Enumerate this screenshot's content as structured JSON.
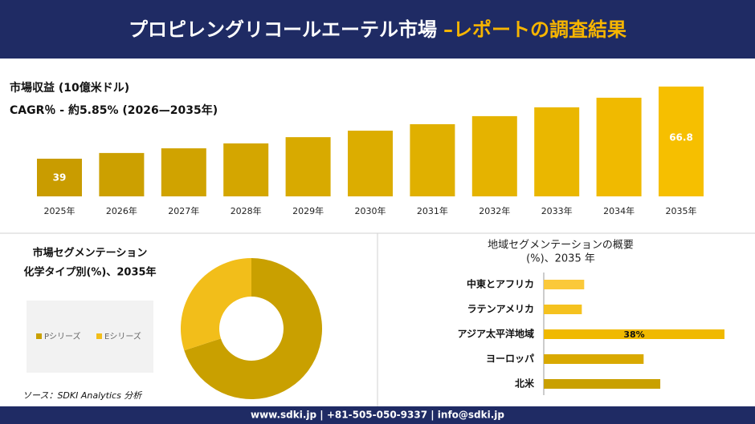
{
  "header": {
    "title": "プロピレングリコールエーテル市場",
    "accent": "–レポートの調査結果"
  },
  "chart_data": [
    {
      "type": "bar",
      "title": "市場収益 (10億米ドル)",
      "subtitle": "CAGR％ - 約5.85% (2026—2035年)",
      "categories": [
        "2025年",
        "2026年",
        "2027年",
        "2028年",
        "2029年",
        "2030年",
        "2031年",
        "2032年",
        "2033年",
        "2034年",
        "2035年"
      ],
      "values": [
        39,
        41.2,
        43.0,
        44.9,
        47.3,
        49.8,
        52.3,
        55.4,
        58.8,
        62.5,
        66.8
      ],
      "value_labels": [
        "39",
        null,
        null,
        null,
        null,
        null,
        null,
        null,
        null,
        null,
        "66.8"
      ],
      "colors": [
        "#c99c00",
        "#cca000",
        "#d0a300",
        "#d4a600",
        "#d8aa00",
        "#dcad00",
        "#e0b000",
        "#e5b300",
        "#eab700",
        "#f0ba00",
        "#f6bf00"
      ]
    },
    {
      "type": "donut",
      "title": "市場セグメンテーション",
      "subtitle": "化学タイプ別(%)、2035年",
      "categories": [
        "Pシリーズ",
        "Eシリーズ"
      ],
      "values": [
        70,
        30
      ],
      "colors": [
        "#c9a000",
        "#f2be1a"
      ]
    },
    {
      "type": "hbar",
      "title": "地域セグメンテーションの概要",
      "subtitle": "(%)、2035 年",
      "categories": [
        "中東とアフリカ",
        "ラテンアメリカ",
        "アジア太平洋地域",
        "ヨーロッパ",
        "北米"
      ],
      "values": [
        8.5,
        8,
        38,
        21,
        24.5
      ],
      "value_labels": [
        null,
        null,
        "38%",
        null,
        null
      ],
      "colors": [
        "#fbc93a",
        "#f5c21f",
        "#f0b900",
        "#d9a900",
        "#c9a000"
      ]
    }
  ],
  "source": "ソース：SDKI Analytics 分析",
  "footer": "www.sdki.jp | +81-505-050-9337 | info@sdki.jp"
}
